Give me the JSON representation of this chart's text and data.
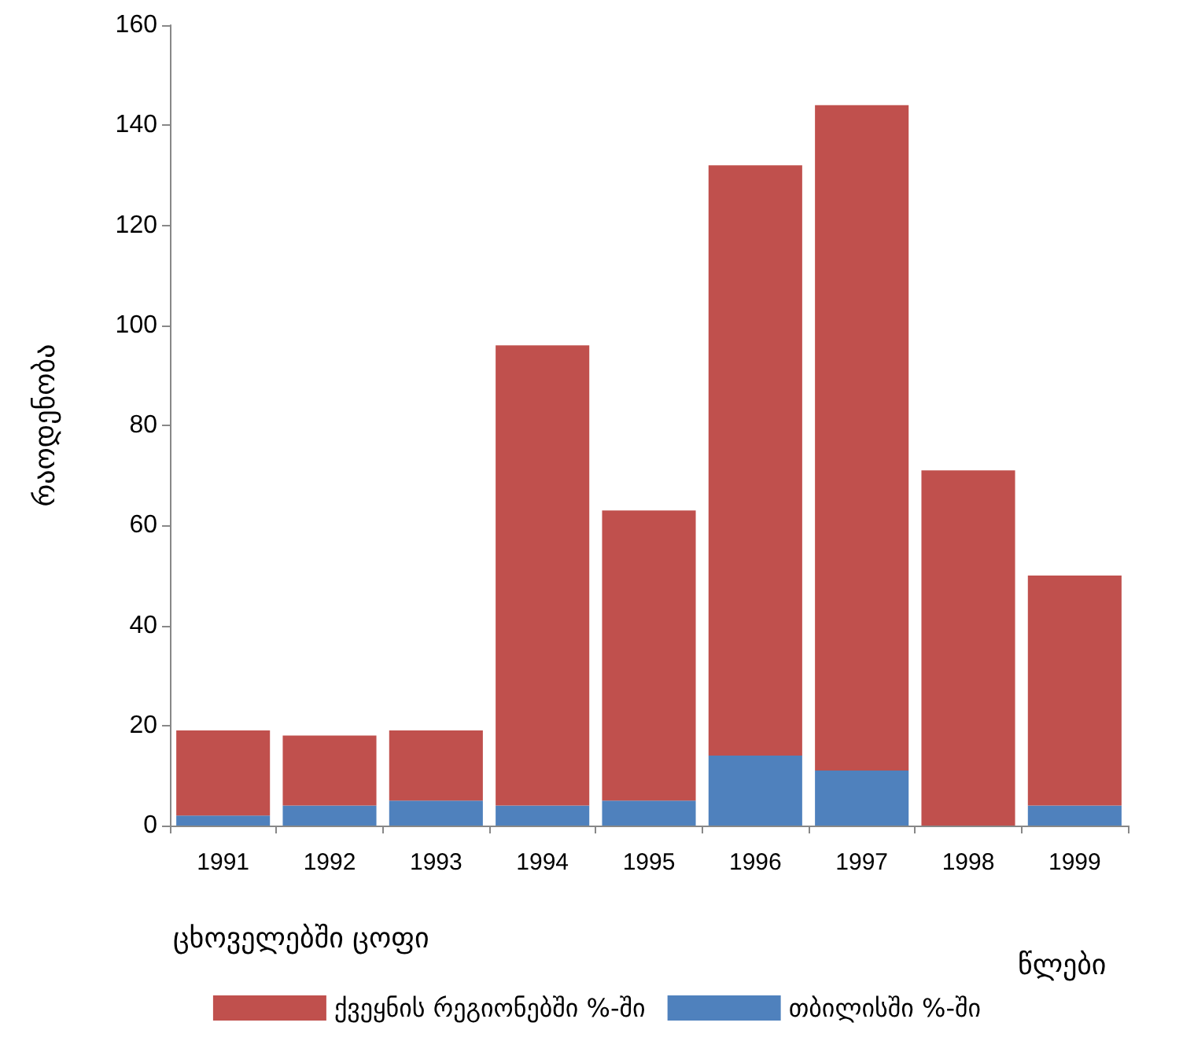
{
  "chart_data": {
    "type": "bar",
    "stacked": true,
    "xlabel": "წლები",
    "ylabel": "რაოდენობა",
    "annotations": [
      "ცხოველებში ცოფი"
    ],
    "categories": [
      "1991",
      "1992",
      "1993",
      "1994",
      "1995",
      "1996",
      "1997",
      "1998",
      "1999"
    ],
    "series": [
      {
        "name": "თბილისში %-ში",
        "color": "#4f81bd",
        "values": [
          2,
          4,
          5,
          4,
          5,
          14,
          11,
          0,
          4
        ]
      },
      {
        "name": "ქვეყნის რეგიონებში %-ში",
        "color": "#c0504d",
        "values": [
          17,
          14,
          14,
          92,
          58,
          118,
          133,
          71,
          46
        ]
      }
    ],
    "ylim": [
      0,
      160
    ],
    "yticks": [
      0,
      20,
      40,
      60,
      80,
      100,
      120,
      140,
      160
    ],
    "grid": false,
    "legend": "bottom"
  }
}
